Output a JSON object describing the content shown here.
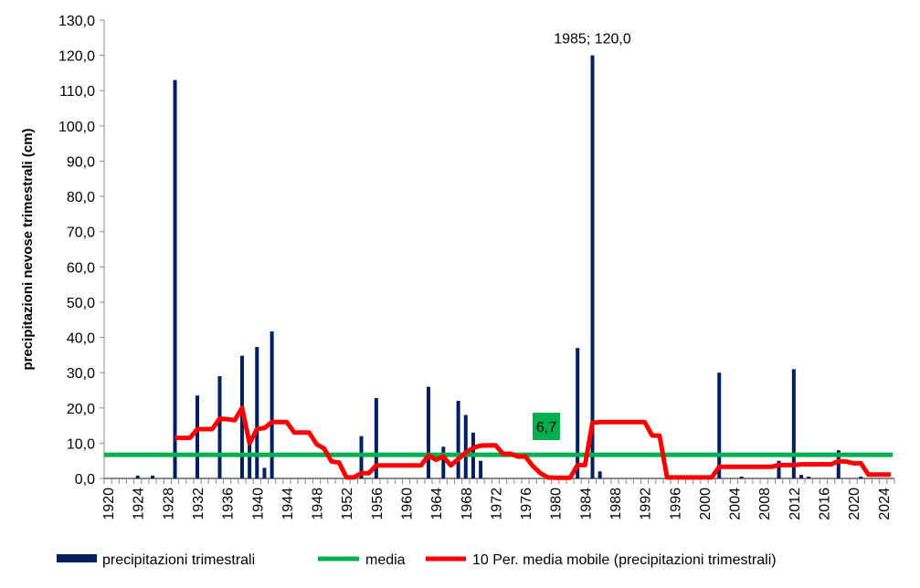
{
  "chart_data": {
    "type": "bar",
    "title": "",
    "xlabel": "",
    "ylabel": "precipitazioni nevose trimestrali (cm)",
    "ylim": [
      0,
      130
    ],
    "ytick_step": 10,
    "xlim": [
      1920,
      2025
    ],
    "xtick_step": 4,
    "grid": false,
    "legend_position": "bottom",
    "colors": {
      "bars": "#002060",
      "mean": "#00b050",
      "moving_average": "#ff0000",
      "mean_label_bg": "#00b050"
    },
    "bars": {
      "name": "precipitazioni trimestrali",
      "points": [
        [
          1924,
          0.8
        ],
        [
          1926,
          0.8
        ],
        [
          1929,
          113.0
        ],
        [
          1932,
          23.5
        ],
        [
          1935,
          29.0
        ],
        [
          1938,
          34.8
        ],
        [
          1939,
          10.0
        ],
        [
          1940,
          37.3
        ],
        [
          1941,
          3.0
        ],
        [
          1942,
          41.7
        ],
        [
          1954,
          12.0
        ],
        [
          1956,
          22.8
        ],
        [
          1963,
          26.0
        ],
        [
          1965,
          9.0
        ],
        [
          1967,
          22.0
        ],
        [
          1968,
          18.0
        ],
        [
          1969,
          13.0
        ],
        [
          1970,
          5.0
        ],
        [
          1983,
          37.0
        ],
        [
          1985,
          120.0
        ],
        [
          1986,
          2.0
        ],
        [
          2002,
          30.0
        ],
        [
          2005,
          0.5
        ],
        [
          2010,
          5.0
        ],
        [
          2012,
          31.0
        ],
        [
          2013,
          1.0
        ],
        [
          2014,
          0.5
        ],
        [
          2018,
          8.0
        ],
        [
          2021,
          0.5
        ]
      ]
    },
    "mean": {
      "name": "media",
      "value": 6.7,
      "label": "6,7"
    },
    "moving_average": {
      "name": "10 Per. media mobile (precipitazioni trimestrali)",
      "points": [
        [
          1929,
          11.5
        ],
        [
          1930,
          11.5
        ],
        [
          1931,
          11.5
        ],
        [
          1932,
          14
        ],
        [
          1933,
          14
        ],
        [
          1934,
          14
        ],
        [
          1935,
          17
        ],
        [
          1936,
          16.8
        ],
        [
          1937,
          16.5
        ],
        [
          1938,
          20
        ],
        [
          1939,
          10
        ],
        [
          1940,
          14
        ],
        [
          1941,
          14.3
        ],
        [
          1942,
          16
        ],
        [
          1943,
          16
        ],
        [
          1944,
          16
        ],
        [
          1945,
          13
        ],
        [
          1946,
          13
        ],
        [
          1947,
          13
        ],
        [
          1948,
          9.7
        ],
        [
          1949,
          8.5
        ],
        [
          1950,
          4.8
        ],
        [
          1951,
          4.5
        ],
        [
          1952,
          0.3
        ],
        [
          1953,
          0.3
        ],
        [
          1954,
          1.5
        ],
        [
          1955,
          1.5
        ],
        [
          1956,
          3.7
        ],
        [
          1957,
          3.7
        ],
        [
          1958,
          3.7
        ],
        [
          1959,
          3.7
        ],
        [
          1960,
          3.7
        ],
        [
          1961,
          3.7
        ],
        [
          1962,
          3.7
        ],
        [
          1963,
          6.5
        ],
        [
          1964,
          5.3
        ],
        [
          1965,
          6.2
        ],
        [
          1966,
          3.7
        ],
        [
          1967,
          5.5
        ],
        [
          1968,
          7.3
        ],
        [
          1969,
          8.7
        ],
        [
          1970,
          9.3
        ],
        [
          1971,
          9.4
        ],
        [
          1972,
          9.4
        ],
        [
          1973,
          7
        ],
        [
          1974,
          7
        ],
        [
          1975,
          6.2
        ],
        [
          1976,
          6.2
        ],
        [
          1977,
          3.5
        ],
        [
          1978,
          1.5
        ],
        [
          1979,
          0.3
        ],
        [
          1980,
          0.2
        ],
        [
          1981,
          0.2
        ],
        [
          1982,
          0.2
        ],
        [
          1983,
          3.8
        ],
        [
          1984,
          3.8
        ],
        [
          1985,
          15.8
        ],
        [
          1986,
          16
        ],
        [
          1987,
          16
        ],
        [
          1988,
          16
        ],
        [
          1989,
          16
        ],
        [
          1990,
          16
        ],
        [
          1991,
          16
        ],
        [
          1992,
          16
        ],
        [
          1993,
          12.2
        ],
        [
          1994,
          12.1
        ],
        [
          1995,
          0.3
        ],
        [
          1996,
          0.3
        ],
        [
          1997,
          0.3
        ],
        [
          1998,
          0.3
        ],
        [
          1999,
          0.3
        ],
        [
          2000,
          0.3
        ],
        [
          2001,
          0.3
        ],
        [
          2002,
          3.3
        ],
        [
          2003,
          3.3
        ],
        [
          2004,
          3.3
        ],
        [
          2005,
          3.3
        ],
        [
          2006,
          3.3
        ],
        [
          2007,
          3.3
        ],
        [
          2008,
          3.3
        ],
        [
          2009,
          3.3
        ],
        [
          2010,
          3.8
        ],
        [
          2011,
          3.8
        ],
        [
          2012,
          3.8
        ],
        [
          2013,
          4
        ],
        [
          2014,
          4
        ],
        [
          2015,
          4
        ],
        [
          2016,
          4
        ],
        [
          2017,
          4
        ],
        [
          2018,
          4.9
        ],
        [
          2019,
          4.8
        ],
        [
          2020,
          4.3
        ],
        [
          2021,
          4.3
        ],
        [
          2022,
          1.1
        ],
        [
          2023,
          1.1
        ],
        [
          2024,
          1.1
        ],
        [
          2025,
          1.1
        ]
      ]
    },
    "annotations": [
      {
        "text": "1985; 120,0",
        "x": 1985,
        "y": 120.0
      }
    ]
  }
}
